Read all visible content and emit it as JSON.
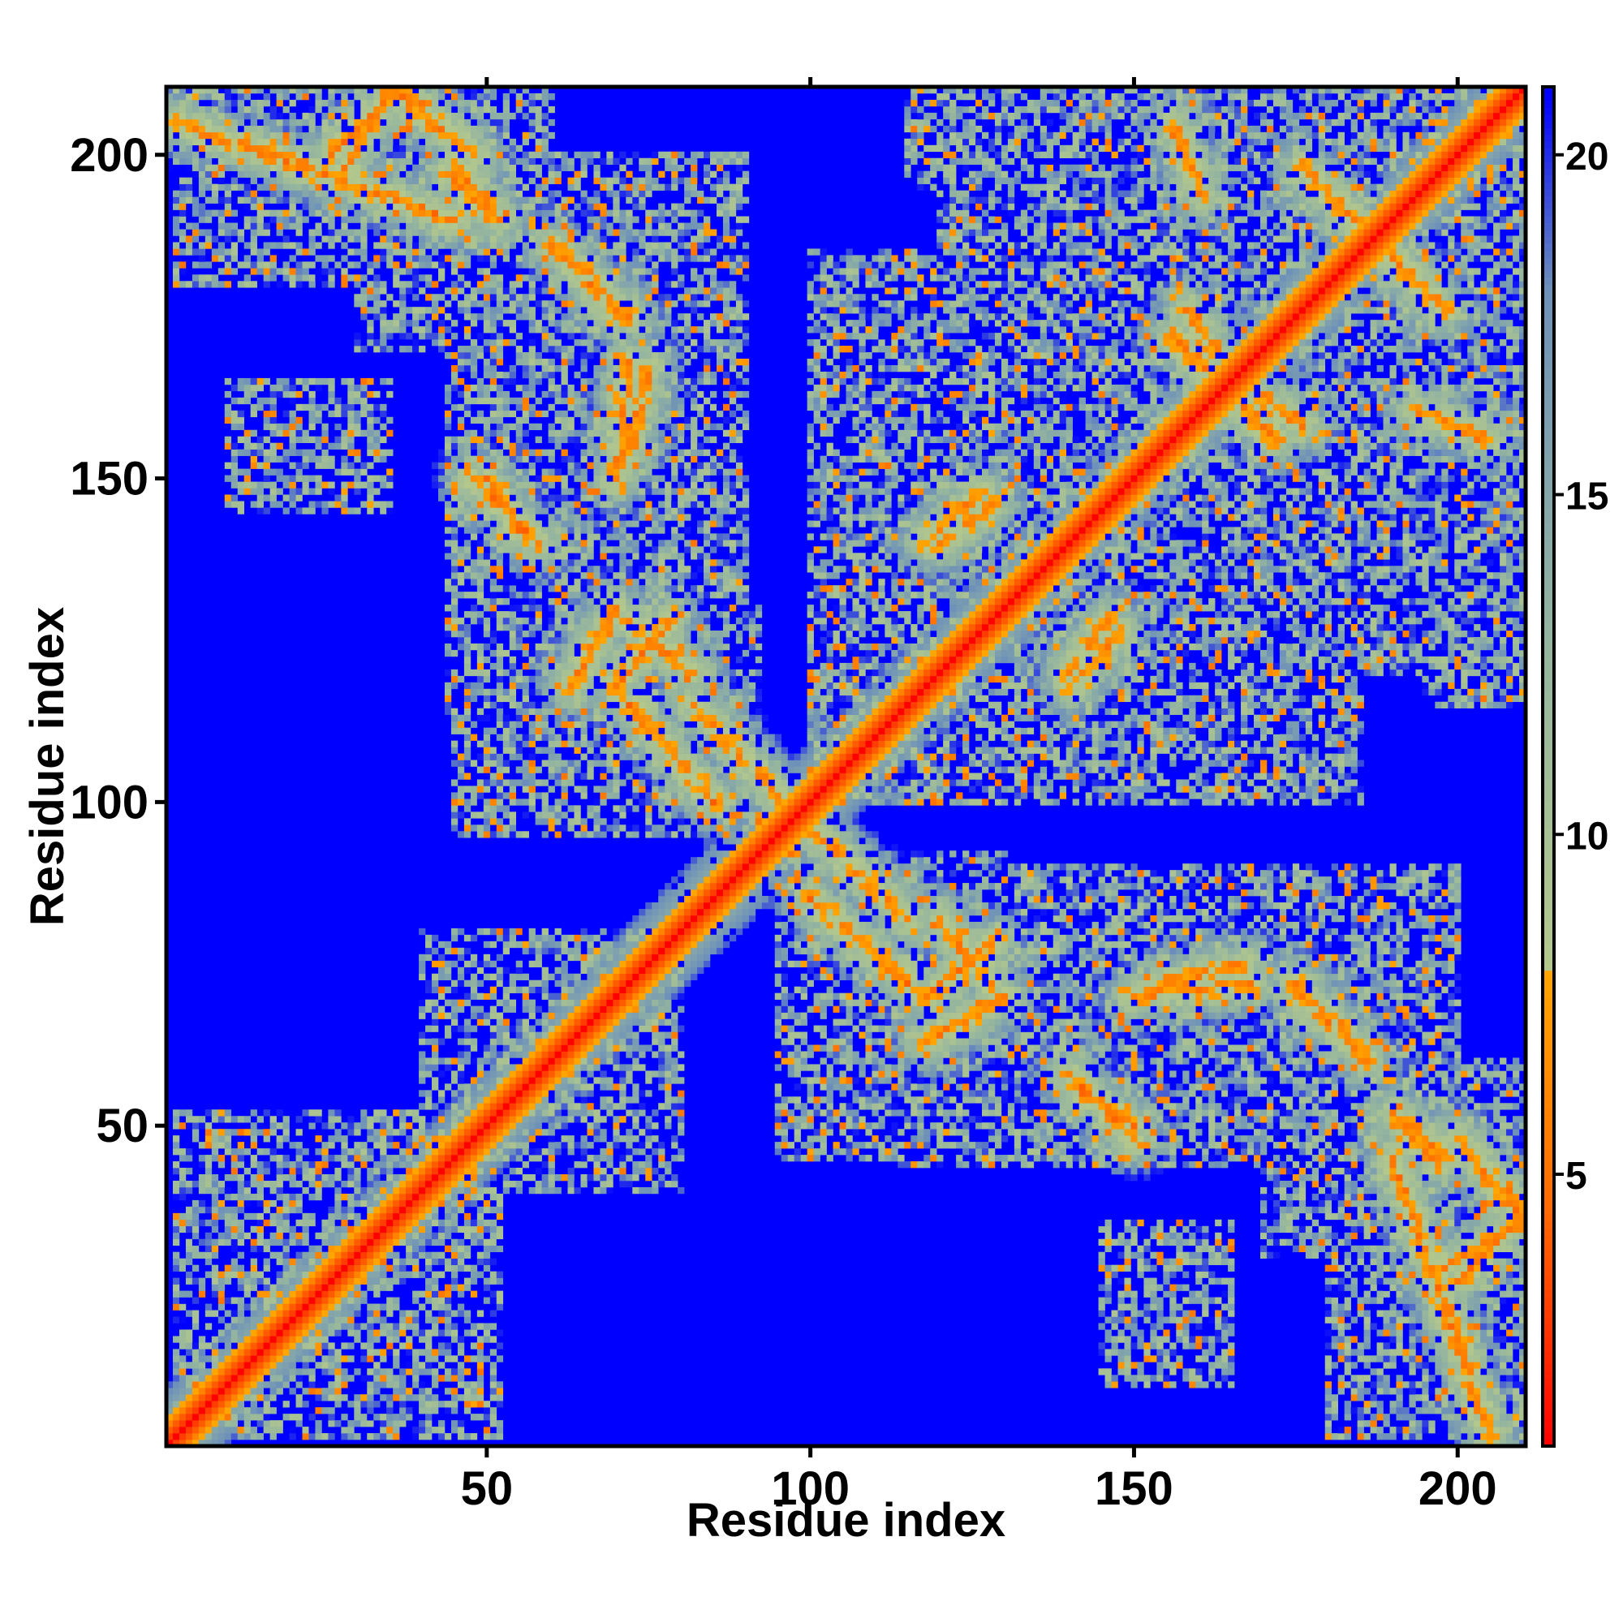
{
  "chart_data": {
    "type": "heatmap",
    "title": "",
    "xlabel": "Residue index",
    "ylabel": "Residue index",
    "n_residues": 210,
    "xlim": [
      1,
      210
    ],
    "ylim": [
      1,
      210
    ],
    "x_ticks": [
      50,
      100,
      150,
      200
    ],
    "y_ticks": [
      50,
      100,
      150,
      200
    ],
    "colorbar": {
      "range": [
        1,
        21
      ],
      "ticks": [
        5,
        10,
        15,
        20
      ],
      "stops": [
        {
          "value": 1,
          "color": "#ff0000"
        },
        {
          "value": 4.5,
          "color": "#ff6a00"
        },
        {
          "value": 8,
          "color": "#ffa500"
        },
        {
          "value": 8.01,
          "color": "#b4c88c"
        },
        {
          "value": 13,
          "color": "#93b4a0"
        },
        {
          "value": 18,
          "color": "#6e91b9"
        },
        {
          "value": 20.9,
          "color": "#0000ff"
        }
      ]
    },
    "background_color": "#0000ff",
    "contact_bands": [
      {
        "x1": 1,
        "y1": 1,
        "x2": 210,
        "y2": 210,
        "kind": "diagonal"
      },
      {
        "x1": 2,
        "y1": 205,
        "x2": 45,
        "y2": 190
      },
      {
        "x1": 28,
        "y1": 198,
        "x2": 35,
        "y2": 210
      },
      {
        "x1": 35,
        "y1": 210,
        "x2": 48,
        "y2": 200
      },
      {
        "x1": 44,
        "y1": 197,
        "x2": 52,
        "y2": 190
      },
      {
        "x1": 60,
        "y1": 186,
        "x2": 72,
        "y2": 175
      },
      {
        "x1": 72,
        "y1": 168,
        "x2": 70,
        "y2": 150
      },
      {
        "x1": 48,
        "y1": 150,
        "x2": 58,
        "y2": 140
      },
      {
        "x1": 70,
        "y1": 130,
        "x2": 63,
        "y2": 118
      },
      {
        "x1": 72,
        "y1": 128,
        "x2": 82,
        "y2": 120
      },
      {
        "x1": 72,
        "y1": 115,
        "x2": 85,
        "y2": 100
      },
      {
        "x1": 100,
        "y1": 96,
        "x2": 115,
        "y2": 82
      },
      {
        "x1": 118,
        "y1": 70,
        "x2": 128,
        "y2": 78
      },
      {
        "x1": 142,
        "y1": 55,
        "x2": 150,
        "y2": 50
      },
      {
        "x1": 155,
        "y1": 72,
        "x2": 167,
        "y2": 75
      },
      {
        "x1": 175,
        "y1": 70,
        "x2": 185,
        "y2": 62
      },
      {
        "x1": 190,
        "y1": 52,
        "x2": 198,
        "y2": 45
      },
      {
        "x1": 202,
        "y1": 46,
        "x2": 210,
        "y2": 36
      },
      {
        "x1": 200,
        "y1": 26,
        "x2": 210,
        "y2": 36
      },
      {
        "x1": 176,
        "y1": 198,
        "x2": 196,
        "y2": 178
      },
      {
        "x1": 118,
        "y1": 140,
        "x2": 126,
        "y2": 148
      },
      {
        "x1": 140,
        "y1": 120,
        "x2": 146,
        "y2": 128
      },
      {
        "x1": 156,
        "y1": 172,
        "x2": 164,
        "y2": 164
      },
      {
        "x1": 170,
        "y1": 162,
        "x2": 176,
        "y2": 158
      },
      {
        "x1": 156,
        "y1": 205,
        "x2": 160,
        "y2": 195
      },
      {
        "x1": 194,
        "y1": 160,
        "x2": 200,
        "y2": 158
      }
    ],
    "cloud_regions": [
      {
        "x": [
          2,
          50
        ],
        "y": [
          188,
          210
        ]
      },
      {
        "x": [
          30,
          75
        ],
        "y": [
          170,
          196
        ]
      },
      {
        "x": [
          44,
          80
        ],
        "y": [
          110,
          170
        ]
      },
      {
        "x": [
          70,
          92
        ],
        "y": [
          95,
          130
        ]
      },
      {
        "x": [
          10,
          35
        ],
        "y": [
          148,
          162
        ]
      },
      {
        "x": [
          100,
          185
        ],
        "y": [
          100,
          185
        ]
      },
      {
        "x": [
          120,
          210
        ],
        "y": [
          185,
          210
        ]
      },
      {
        "x": [
          195,
          210
        ],
        "y": [
          115,
          170
        ]
      },
      {
        "x": [
          95,
          200
        ],
        "y": [
          45,
          90
        ]
      },
      {
        "x": [
          2,
          52
        ],
        "y": [
          2,
          50
        ]
      },
      {
        "x": [
          40,
          80
        ],
        "y": [
          45,
          80
        ]
      },
      {
        "x": [
          145,
          165
        ],
        "y": [
          10,
          35
        ]
      },
      {
        "x": [
          180,
          210
        ],
        "y": [
          2,
          60
        ]
      }
    ]
  }
}
